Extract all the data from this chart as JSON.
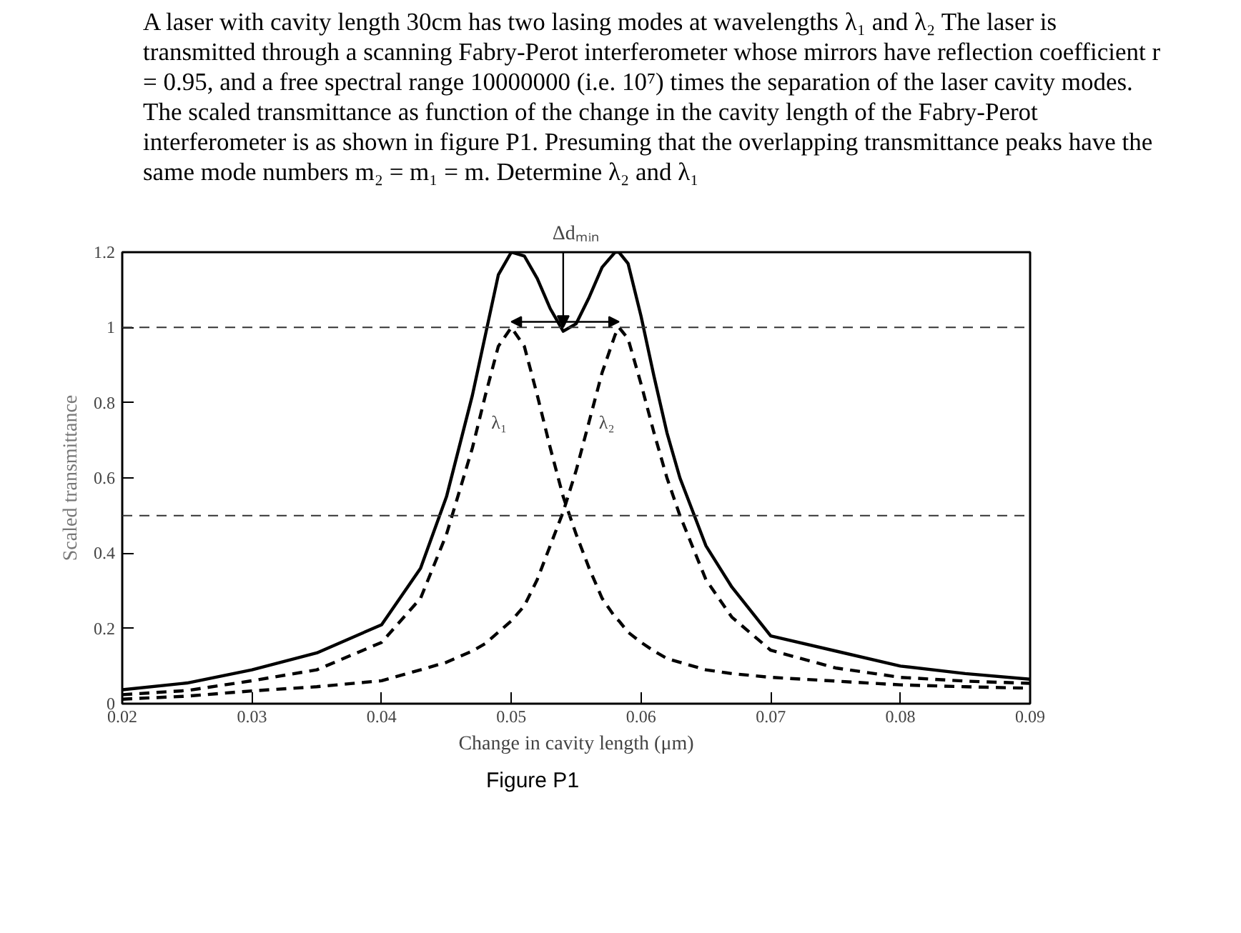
{
  "chart_data": {
    "type": "line",
    "title": "A laser with cavity length 30cm has two lasing modes at wavelengths λ₁ and λ₂ The laser is transmitted through a scanning Fabry-Perot interferometer whose mirrors have reflection coefficient r = 0.95, and a free spectral range 10000000 (i.e. 10⁷) times the separation of the laser cavity modes. The scaled transmittance as function of the change in the cavity length of the Fabry-Perot interferometer is as shown in figure P1. Presuming that the overlapping transmittance peaks have the same mode numbers m₂ = m₁ = m. Determine λ₂ and λ₁",
    "xlabel": "Change in cavity length (μm)",
    "ylabel": "Scaled transmittance",
    "x": [
      0.02,
      0.025,
      0.03,
      0.035,
      0.04,
      0.043,
      0.045,
      0.047,
      0.048,
      0.049,
      0.05,
      0.051,
      0.052,
      0.053,
      0.054,
      0.055,
      0.056,
      0.057,
      0.058,
      0.0583,
      0.059,
      0.06,
      0.061,
      0.062,
      0.063,
      0.065,
      0.067,
      0.07,
      0.075,
      0.08,
      0.085,
      0.09
    ],
    "series": [
      {
        "color": "#000000",
        "line_style": "solid",
        "values": [
          0.037,
          0.055,
          0.09,
          0.135,
          0.21,
          0.36,
          0.55,
          0.82,
          0.98,
          1.14,
          1.2,
          1.19,
          1.13,
          1.05,
          0.99,
          1.01,
          1.08,
          1.16,
          1.2,
          1.2,
          1.17,
          1.03,
          0.87,
          0.72,
          0.6,
          0.42,
          0.31,
          0.18,
          0.14,
          0.1,
          0.08,
          0.065
        ]
      },
      {
        "color": "#000000",
        "line_style": "dashed",
        "values": [
          0.024,
          0.035,
          0.061,
          0.09,
          0.163,
          0.28,
          0.45,
          0.68,
          0.82,
          0.95,
          1.0,
          0.95,
          0.82,
          0.68,
          0.55,
          0.45,
          0.36,
          0.28,
          0.23,
          0.22,
          0.19,
          0.163,
          0.14,
          0.12,
          0.11,
          0.09,
          0.08,
          0.07,
          0.06,
          0.05,
          0.045,
          0.041
        ]
      },
      {
        "color": "#000000",
        "line_style": "dashed",
        "values": [
          0.012,
          0.02,
          0.034,
          0.045,
          0.061,
          0.09,
          0.11,
          0.14,
          0.16,
          0.19,
          0.22,
          0.26,
          0.33,
          0.42,
          0.51,
          0.62,
          0.75,
          0.88,
          0.98,
          1.0,
          0.97,
          0.85,
          0.72,
          0.6,
          0.5,
          0.33,
          0.23,
          0.142,
          0.095,
          0.07,
          0.06,
          0.054
        ]
      }
    ],
    "xlim": [
      0.02,
      0.09
    ],
    "ylim": [
      0,
      1.2
    ],
    "xticks": [
      0.02,
      0.03,
      0.04,
      0.05,
      0.06,
      0.07,
      0.08,
      0.09
    ],
    "yticks": [
      0,
      0.2,
      0.4,
      0.6,
      0.8,
      1,
      1.2
    ],
    "ref_lines": [
      {
        "axis": "y",
        "value": 1,
        "line_style": "dashed",
        "color": "#333333"
      },
      {
        "axis": "y",
        "value": 0.5,
        "line_style": "dashed",
        "color": "#333333"
      }
    ],
    "annotations": [
      "λ₁",
      "λ₂",
      {
        "text": "Δdₘᵢₙ",
        "x": 0.054,
        "y": 0.99
      },
      "Figure P1"
    ]
  }
}
